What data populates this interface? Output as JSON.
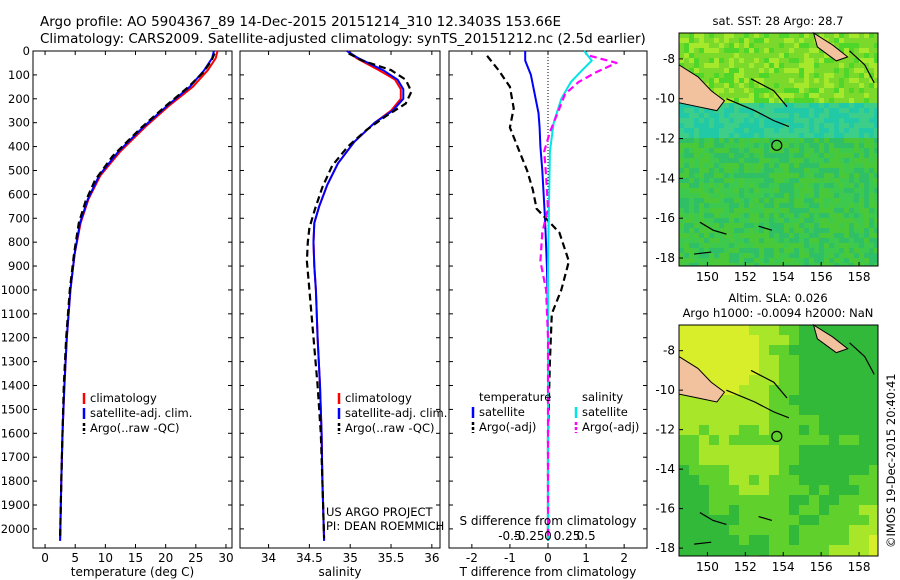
{
  "header": {
    "line1": "Argo profile: AO 5904367_89 14-Dec-2015 20151214_310 12.3403S 153.66E",
    "line2": "Climatology: CARS2009. Satellite-adjusted climatology: synTS_20151212.nc (2.5d earlier)"
  },
  "footer_credit": "©IMOS 19-Dec-2015 20:40:41",
  "colors": {
    "climatology": "#ff0000",
    "satellite": "#0000ff",
    "argo": "#000000",
    "sat_sal": "#00e5e5",
    "argo_sal": "#ff00ff",
    "land": "#f2c29e"
  },
  "chart_data": [
    {
      "type": "line",
      "id": "temperature",
      "xlabel": "temperature (deg C)",
      "ylabel": "",
      "xlim": [
        -2,
        31
      ],
      "ylim": [
        2080,
        0
      ],
      "xticks": [
        0,
        5,
        10,
        15,
        20,
        25,
        30
      ],
      "yticks": [
        0,
        100,
        200,
        300,
        400,
        500,
        600,
        700,
        800,
        900,
        1000,
        1100,
        1200,
        1300,
        1400,
        1500,
        1600,
        1700,
        1800,
        1900,
        2000
      ],
      "legend": [
        "climatology",
        "satellite-adj. clim.",
        "Argo(..raw -QC)"
      ],
      "series": [
        {
          "name": "climatology",
          "style": "red",
          "points": [
            [
              28.6,
              0
            ],
            [
              28.3,
              30
            ],
            [
              27,
              80
            ],
            [
              24.5,
              150
            ],
            [
              20.5,
              230
            ],
            [
              16.5,
              320
            ],
            [
              12.5,
              420
            ],
            [
              9.2,
              520
            ],
            [
              7.2,
              620
            ],
            [
              5.9,
              720
            ],
            [
              4.9,
              850
            ],
            [
              4.2,
              1000
            ],
            [
              3.6,
              1200
            ],
            [
              3.2,
              1400
            ],
            [
              2.9,
              1600
            ],
            [
              2.7,
              1800
            ],
            [
              2.5,
              2050
            ]
          ]
        },
        {
          "name": "satellite-adj. clim.",
          "style": "blue",
          "points": [
            [
              28.0,
              0
            ],
            [
              27.7,
              30
            ],
            [
              26.4,
              80
            ],
            [
              24.0,
              150
            ],
            [
              20.2,
              230
            ],
            [
              16.2,
              320
            ],
            [
              12.2,
              420
            ],
            [
              9.0,
              520
            ],
            [
              7.1,
              620
            ],
            [
              5.8,
              720
            ],
            [
              4.9,
              850
            ],
            [
              4.2,
              1000
            ],
            [
              3.6,
              1200
            ],
            [
              3.2,
              1400
            ],
            [
              2.9,
              1600
            ],
            [
              2.7,
              1800
            ],
            [
              2.5,
              2050
            ]
          ]
        },
        {
          "name": "Argo(..raw -QC)",
          "style": "black-dash",
          "points": [
            [
              28.1,
              10
            ],
            [
              27.6,
              40
            ],
            [
              26.2,
              90
            ],
            [
              23.8,
              150
            ],
            [
              20.0,
              230
            ],
            [
              16.0,
              320
            ],
            [
              11.2,
              440
            ],
            [
              8.3,
              540
            ],
            [
              6.7,
              630
            ],
            [
              5.6,
              720
            ],
            [
              4.8,
              850
            ],
            [
              4.1,
              1000
            ],
            [
              3.5,
              1200
            ],
            [
              3.1,
              1400
            ],
            [
              2.9,
              1600
            ],
            [
              2.7,
              1800
            ],
            [
              2.5,
              2040
            ]
          ]
        }
      ]
    },
    {
      "type": "line",
      "id": "salinity",
      "xlabel": "salinity",
      "ylabel": "",
      "xlim": [
        33.65,
        36.1
      ],
      "ylim": [
        2080,
        0
      ],
      "xticks": [
        34,
        34.5,
        35,
        35.5,
        36
      ],
      "xtick_labels": [
        "34",
        "34.5",
        "35",
        "35.5",
        "36"
      ],
      "legend": [
        "climatology",
        "satellite-adj. clim.",
        "Argo(..raw -QC)"
      ],
      "annotation": [
        "US ARGO PROJECT",
        "PI: DEAN ROEMMICH"
      ],
      "series": [
        {
          "name": "climatology",
          "style": "red",
          "points": [
            [
              34.97,
              0
            ],
            [
              35.08,
              30
            ],
            [
              35.35,
              80
            ],
            [
              35.55,
              120
            ],
            [
              35.62,
              160
            ],
            [
              35.62,
              200
            ],
            [
              35.5,
              250
            ],
            [
              35.3,
              300
            ],
            [
              35.05,
              380
            ],
            [
              34.85,
              470
            ],
            [
              34.72,
              560
            ],
            [
              34.62,
              650
            ],
            [
              34.56,
              720
            ],
            [
              34.55,
              800
            ],
            [
              34.56,
              900
            ],
            [
              34.58,
              1000
            ],
            [
              34.6,
              1200
            ],
            [
              34.63,
              1400
            ],
            [
              34.65,
              1600
            ],
            [
              34.66,
              1800
            ],
            [
              34.68,
              2050
            ]
          ]
        },
        {
          "name": "satellite-adj. clim.",
          "style": "blue",
          "points": [
            [
              34.96,
              0
            ],
            [
              35.1,
              30
            ],
            [
              35.4,
              80
            ],
            [
              35.58,
              120
            ],
            [
              35.65,
              160
            ],
            [
              35.65,
              200
            ],
            [
              35.52,
              250
            ],
            [
              35.3,
              300
            ],
            [
              35.05,
              380
            ],
            [
              34.85,
              470
            ],
            [
              34.72,
              560
            ],
            [
              34.62,
              650
            ],
            [
              34.56,
              720
            ],
            [
              34.55,
              800
            ],
            [
              34.56,
              900
            ],
            [
              34.58,
              1000
            ],
            [
              34.6,
              1200
            ],
            [
              34.63,
              1400
            ],
            [
              34.65,
              1600
            ],
            [
              34.66,
              1800
            ],
            [
              34.68,
              2050
            ]
          ]
        },
        {
          "name": "Argo(..raw -QC)",
          "style": "black-dash",
          "points": [
            [
              34.98,
              10
            ],
            [
              35.15,
              40
            ],
            [
              35.5,
              80
            ],
            [
              35.68,
              120
            ],
            [
              35.75,
              170
            ],
            [
              35.68,
              220
            ],
            [
              35.45,
              270
            ],
            [
              35.2,
              330
            ],
            [
              34.97,
              400
            ],
            [
              34.78,
              480
            ],
            [
              34.66,
              570
            ],
            [
              34.57,
              660
            ],
            [
              34.5,
              740
            ],
            [
              34.48,
              800
            ],
            [
              34.47,
              880
            ],
            [
              34.5,
              1000
            ],
            [
              34.55,
              1200
            ],
            [
              34.6,
              1400
            ],
            [
              34.64,
              1600
            ],
            [
              34.66,
              1800
            ],
            [
              34.68,
              2040
            ]
          ]
        }
      ]
    },
    {
      "type": "line",
      "id": "differences",
      "xlabel": "T difference from climatology",
      "x2label": "S difference from climatology",
      "xlim": [
        -2.6,
        2.6
      ],
      "ylim": [
        2080,
        0
      ],
      "xticks": [
        -2,
        -1,
        0,
        1,
        2
      ],
      "x2ticks": [
        -0.5,
        -0.25,
        0,
        0.25,
        0.5
      ],
      "x2tick_labels": [
        "-0.5",
        "-0.25",
        "0",
        "0.25",
        "0.5"
      ],
      "legend_headers": [
        "temperature",
        "salinity"
      ],
      "legend": [
        "satellite",
        "Argo(-adj)",
        "satellite",
        "Argo(-adj)"
      ],
      "series": [
        {
          "name": "satellite",
          "group": "temperature",
          "style": "blue",
          "points": [
            [
              -0.6,
              0
            ],
            [
              -0.6,
              40
            ],
            [
              -0.45,
              100
            ],
            [
              -0.35,
              180
            ],
            [
              -0.25,
              260
            ],
            [
              -0.22,
              320
            ],
            [
              -0.2,
              400
            ],
            [
              -0.15,
              500
            ],
            [
              -0.08,
              700
            ],
            [
              -0.03,
              900
            ],
            [
              0,
              1100
            ],
            [
              0,
              2050
            ]
          ]
        },
        {
          "name": "Argo(-adj)",
          "group": "temperature",
          "style": "black-dash",
          "points": [
            [
              -1.6,
              20
            ],
            [
              -1.3,
              80
            ],
            [
              -1.0,
              150
            ],
            [
              -0.9,
              240
            ],
            [
              -1.0,
              320
            ],
            [
              -0.75,
              420
            ],
            [
              -0.55,
              500
            ],
            [
              -0.4,
              580
            ],
            [
              -0.3,
              660
            ],
            [
              0.3,
              760
            ],
            [
              0.55,
              880
            ],
            [
              0.35,
              1000
            ],
            [
              0.1,
              1100
            ],
            [
              0.05,
              1300
            ],
            [
              0.0,
              1600
            ],
            [
              0.0,
              2040
            ]
          ]
        },
        {
          "name": "satellite",
          "group": "salinity",
          "style": "cyan",
          "points": [
            [
              0.95,
              0
            ],
            [
              1.15,
              40
            ],
            [
              0.9,
              80
            ],
            [
              0.6,
              130
            ],
            [
              0.35,
              200
            ],
            [
              0.15,
              300
            ],
            [
              0.05,
              420
            ],
            [
              0.02,
              700
            ],
            [
              0.0,
              900
            ],
            [
              0.0,
              2050
            ]
          ]
        },
        {
          "name": "Argo(-adj)",
          "group": "salinity",
          "style": "magenta-dash",
          "points": [
            [
              1.1,
              20
            ],
            [
              1.8,
              50
            ],
            [
              1.25,
              90
            ],
            [
              0.8,
              130
            ],
            [
              0.45,
              180
            ],
            [
              0.25,
              260
            ],
            [
              0.05,
              340
            ],
            [
              -0.1,
              420
            ],
            [
              -0.05,
              520
            ],
            [
              0.0,
              660
            ],
            [
              -0.15,
              760
            ],
            [
              -0.2,
              880
            ],
            [
              -0.05,
              1000
            ],
            [
              0.0,
              1200
            ],
            [
              0.0,
              2040
            ]
          ]
        }
      ]
    },
    {
      "type": "heatmap",
      "id": "sst-map",
      "title": "sat. SST: 28 Argo: 28.7",
      "xlim": [
        148.5,
        159
      ],
      "ylim": [
        -18.4,
        -6.7
      ],
      "xticks": [
        150,
        152,
        154,
        156,
        158
      ],
      "yticks": [
        -8,
        -10,
        -12,
        -14,
        -16,
        -18
      ],
      "marker": {
        "lon": 153.66,
        "lat": -12.34
      }
    },
    {
      "type": "heatmap",
      "id": "sla-map",
      "title": [
        "Altim. SLA: 0.026",
        "Argo h1000: -0.0094 h2000: NaN"
      ],
      "xlim": [
        148.5,
        159
      ],
      "ylim": [
        -18.4,
        -6.7
      ],
      "xticks": [
        150,
        152,
        154,
        156,
        158
      ],
      "yticks": [
        -8,
        -10,
        -12,
        -14,
        -16,
        -18
      ],
      "marker": {
        "lon": 153.66,
        "lat": -12.34
      }
    }
  ]
}
